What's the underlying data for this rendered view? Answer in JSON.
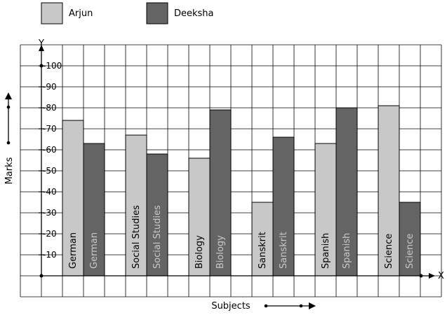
{
  "chart_data": {
    "type": "bar",
    "title": "",
    "xlabel": "Subjects",
    "ylabel": "Marks",
    "x_axis_letter": "X",
    "y_axis_letter": "Y",
    "categories": [
      "German",
      "Social Studies",
      "Biology",
      "Sanskrit",
      "Spanish",
      "Science"
    ],
    "series": [
      {
        "name": "Arjun",
        "color": "#c8c8c8",
        "label_color": "#000000",
        "values": [
          74,
          67,
          56,
          35,
          63,
          81
        ]
      },
      {
        "name": "Deeksha",
        "color": "#646464",
        "label_color": "#c8c8c8",
        "values": [
          63,
          58,
          79,
          66,
          80,
          35
        ]
      }
    ],
    "yticks": [
      "10",
      "20",
      "30",
      "40",
      "50",
      "60",
      "70",
      "80",
      "90",
      "100"
    ],
    "ylim": [
      -10,
      110
    ],
    "grid": true,
    "legend": "top-left"
  }
}
